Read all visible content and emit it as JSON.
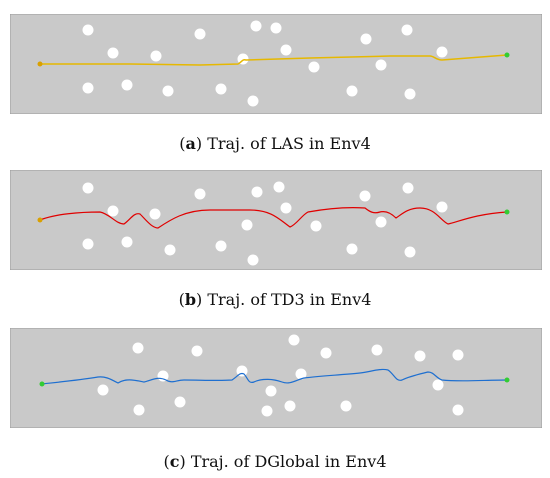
{
  "captions": [
    {
      "letter": "a",
      "text": "Traj. of LAS in Env4"
    },
    {
      "letter": "b",
      "text": "Traj. of TD3 in Env4"
    },
    {
      "letter": "c",
      "text": "Traj. of DGlobal in Env4"
    }
  ],
  "colors": {
    "floor": "#c9c9c9",
    "floor_edge": "#9a9a9a",
    "obstacle": "#ffffff",
    "las": "#e6b800",
    "td3": "#e00000",
    "dglobal": "#1e6fd0",
    "start": "#d9a000",
    "goal": "#33cc33"
  }
}
